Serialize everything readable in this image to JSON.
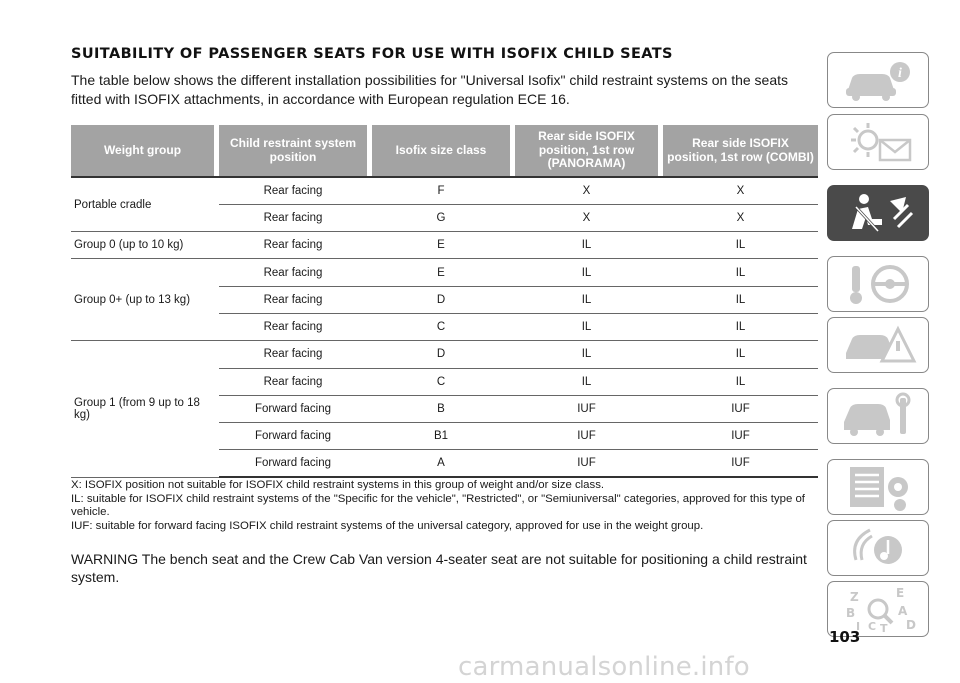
{
  "title": "SUITABILITY OF PASSENGER SEATS FOR USE WITH ISOFIX CHILD SEATS",
  "intro": "The table below shows the different installation possibilities for \"Universal Isofix\" child restraint systems on the seats fitted with ISOFIX attachments, in accordance with European regulation ECE 16.",
  "table": {
    "headers": [
      "Weight group",
      "Child restraint system position",
      "Isofix size class",
      "Rear side ISOFIX position, 1st row (PANORAMA)",
      "Rear side ISOFIX position, 1st row (COMBI)"
    ],
    "groups": [
      {
        "name": "Portable cradle",
        "rows": [
          [
            "Rear facing",
            "F",
            "X",
            "X"
          ],
          [
            "Rear facing",
            "G",
            "X",
            "X"
          ]
        ]
      },
      {
        "name": "Group 0 (up to 10 kg)",
        "rows": [
          [
            "Rear facing",
            "E",
            "IL",
            "IL"
          ]
        ]
      },
      {
        "name": "Group 0+ (up to 13 kg)",
        "rows": [
          [
            "Rear facing",
            "E",
            "IL",
            "IL"
          ],
          [
            "Rear facing",
            "D",
            "IL",
            "IL"
          ],
          [
            "Rear facing",
            "C",
            "IL",
            "IL"
          ]
        ]
      },
      {
        "name": "Group 1 (from 9 up to 18 kg)",
        "rows": [
          [
            "Rear facing",
            "D",
            "IL",
            "IL"
          ],
          [
            "Rear facing",
            "C",
            "IL",
            "IL"
          ],
          [
            "Forward facing",
            "B",
            "IUF",
            "IUF"
          ],
          [
            "Forward facing",
            "B1",
            "IUF",
            "IUF"
          ],
          [
            "Forward facing",
            "A",
            "IUF",
            "IUF"
          ]
        ]
      }
    ]
  },
  "notes": [
    "X: ISOFIX position not suitable for ISOFIX child restraint systems in this group of weight and/or size class.",
    "IL: suitable for ISOFIX child restraint systems of the \"Specific for the vehicle\", \"Restricted\", or \"Semiuniversal\" categories, approved for this type of vehicle.",
    "IUF: suitable for forward facing ISOFIX child restraint systems of the universal category, approved for use in the weight group."
  ],
  "warning": "WARNING The bench seat and the Crew Cab Van version 4-seater seat are not suitable for positioning a child restraint system.",
  "sidebar": {
    "active_index": 2,
    "icons": [
      "car-info-icon",
      "warning-lights-icon",
      "seat-airbag-icon",
      "key-steering-icon",
      "car-emergency-icon",
      "car-service-icon",
      "specs-gear-icon",
      "multimedia-icon",
      "index-letters-icon"
    ],
    "index_letters": [
      "Z",
      "E",
      "B",
      "A",
      "I",
      "C",
      "T",
      "D"
    ]
  },
  "page_number": "103",
  "watermark": "carmanualsonline.info"
}
